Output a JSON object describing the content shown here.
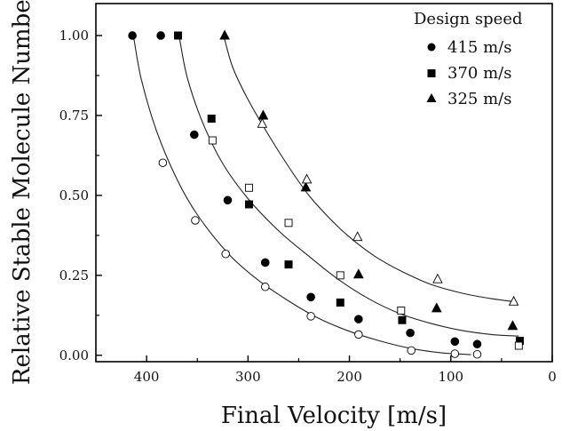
{
  "chart_data": {
    "type": "scatter",
    "title": "",
    "xlabel": "Final Velocity [m/s]",
    "ylabel": "Relative Stable Molecule Number",
    "xlim": [
      450,
      0
    ],
    "ylim": [
      -0.02,
      1.1
    ],
    "x_reversed": true,
    "x_ticks": [
      400,
      300,
      200,
      100,
      0
    ],
    "x_tick_labels": [
      "400",
      "300",
      "200",
      "100",
      "0"
    ],
    "y_ticks": [
      0.0,
      0.25,
      0.5,
      0.75,
      1.0
    ],
    "y_tick_labels": [
      "0.00",
      "0.25",
      "0.50",
      "0.75",
      "1.00"
    ],
    "grid": false,
    "legend": {
      "title": "Design speed",
      "position": "top-right",
      "entries": [
        {
          "label": "415 m/s",
          "marker": "circle"
        },
        {
          "label": "370 m/s",
          "marker": "square"
        },
        {
          "label": "325 m/s",
          "marker": "triangle"
        }
      ]
    },
    "series": [
      {
        "name": "415 m/s",
        "marker": "circle",
        "filled": [
          [
            414,
            1.0
          ],
          [
            386,
            1.0
          ],
          [
            353,
            0.69
          ],
          [
            320,
            0.485
          ],
          [
            283,
            0.29
          ],
          [
            238,
            0.182
          ],
          [
            191,
            0.113
          ],
          [
            140,
            0.07
          ],
          [
            96,
            0.043
          ],
          [
            74,
            0.035
          ]
        ],
        "open": [
          [
            384,
            0.602
          ],
          [
            352,
            0.422
          ],
          [
            322,
            0.317
          ],
          [
            283,
            0.214
          ],
          [
            238,
            0.122
          ],
          [
            191,
            0.065
          ],
          [
            139,
            0.015
          ],
          [
            96,
            0.005
          ],
          [
            74,
            0.003
          ]
        ],
        "fit": [
          [
            413,
            1.0
          ],
          [
            405,
            0.86
          ],
          [
            390,
            0.7
          ],
          [
            370,
            0.55
          ],
          [
            350,
            0.44
          ],
          [
            320,
            0.32
          ],
          [
            290,
            0.235
          ],
          [
            260,
            0.17
          ],
          [
            230,
            0.115
          ],
          [
            200,
            0.075
          ],
          [
            170,
            0.045
          ],
          [
            140,
            0.022
          ],
          [
            110,
            0.008
          ],
          [
            80,
            0.002
          ]
        ]
      },
      {
        "name": "370 m/s",
        "marker": "square",
        "filled": [
          [
            369,
            1.0
          ],
          [
            336,
            0.74
          ],
          [
            299,
            0.472
          ],
          [
            260,
            0.284
          ],
          [
            209,
            0.165
          ],
          [
            148,
            0.11
          ],
          [
            32,
            0.045
          ]
        ],
        "open": [
          [
            335,
            0.672
          ],
          [
            299,
            0.524
          ],
          [
            260,
            0.414
          ],
          [
            209,
            0.25
          ],
          [
            149,
            0.14
          ],
          [
            33,
            0.03
          ]
        ],
        "fit": [
          [
            368,
            1.0
          ],
          [
            360,
            0.87
          ],
          [
            345,
            0.73
          ],
          [
            325,
            0.6
          ],
          [
            300,
            0.49
          ],
          [
            270,
            0.39
          ],
          [
            240,
            0.31
          ],
          [
            210,
            0.235
          ],
          [
            180,
            0.175
          ],
          [
            150,
            0.13
          ],
          [
            120,
            0.1
          ],
          [
            90,
            0.078
          ],
          [
            60,
            0.065
          ],
          [
            33,
            0.06
          ]
        ]
      },
      {
        "name": "325 m/s",
        "marker": "triangle",
        "filled": [
          [
            323,
            1.0
          ],
          [
            285,
            0.75
          ],
          [
            243,
            0.525
          ],
          [
            191,
            0.253
          ],
          [
            114,
            0.147
          ],
          [
            39,
            0.092
          ]
        ],
        "open": [
          [
            286,
            0.724
          ],
          [
            242,
            0.55
          ],
          [
            192,
            0.37
          ],
          [
            113,
            0.238
          ],
          [
            38,
            0.168
          ]
        ],
        "fit": [
          [
            324,
            1.0
          ],
          [
            315,
            0.9
          ],
          [
            300,
            0.8
          ],
          [
            280,
            0.69
          ],
          [
            260,
            0.59
          ],
          [
            240,
            0.5
          ],
          [
            220,
            0.43
          ],
          [
            200,
            0.37
          ],
          [
            175,
            0.31
          ],
          [
            150,
            0.265
          ],
          [
            120,
            0.222
          ],
          [
            90,
            0.195
          ],
          [
            60,
            0.177
          ],
          [
            38,
            0.168
          ]
        ]
      }
    ]
  }
}
